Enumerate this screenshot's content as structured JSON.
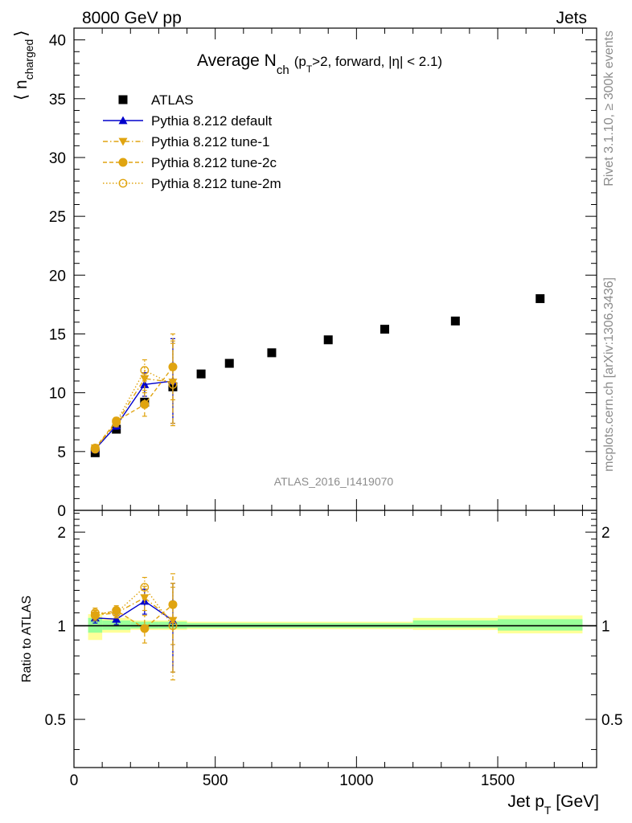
{
  "header": {
    "left": "8000 GeV pp",
    "right": "Jets",
    "side_top": "Rivet 3.1.10, ≥ 300k events",
    "side_bottom": "mcplots.cern.ch [arXiv:1306.3436]",
    "watermark": "ATLAS_2016_I1419070"
  },
  "title": {
    "main": "Average N",
    "main_sub": "ch",
    "qual_open": "(p",
    "qual_sub": "T",
    "qual_close": ">2, forward, |η| < 2.1)"
  },
  "axes": {
    "ylabel_open": "⟨ n",
    "ylabel_sub": "charged",
    "ylabel_close": "⟩",
    "ratio_ylabel": "Ratio to ATLAS",
    "xlabel_main": "Jet p",
    "xlabel_sub": "T",
    "xlabel_unit": " [GeV]"
  },
  "chart_data": [
    {
      "type": "scatter",
      "panel": "main",
      "xlim": [
        0,
        1850
      ],
      "ylim": [
        0,
        41
      ],
      "x_ticks": [
        0,
        500,
        1000,
        1500
      ],
      "x_tick_labels": [
        "0",
        "500",
        "1000",
        "1500"
      ],
      "y_ticks": [
        0,
        5,
        10,
        15,
        20,
        25,
        30,
        35,
        40
      ],
      "y_tick_labels": [
        "0",
        "5",
        "10",
        "15",
        "20",
        "25",
        "30",
        "35",
        "40"
      ],
      "legend_position": "top-left",
      "series": [
        {
          "name": "ATLAS",
          "color": "#000000",
          "marker": "square",
          "line": "none",
          "x": [
            75,
            150,
            250,
            350,
            450,
            550,
            700,
            900,
            1100,
            1350,
            1650
          ],
          "y": [
            4.9,
            6.9,
            9.2,
            10.5,
            11.6,
            12.5,
            13.4,
            14.5,
            15.4,
            16.1,
            18.0
          ]
        },
        {
          "name": "Pythia 8.212 default",
          "color": "#0000cc",
          "marker": "triangle-up",
          "line": "solid",
          "x": [
            75,
            150,
            250,
            350
          ],
          "y": [
            5.2,
            7.2,
            10.7,
            11.0
          ],
          "yerr": [
            0.2,
            0.3,
            1.0,
            3.6
          ]
        },
        {
          "name": "Pythia 8.212 tune-1",
          "color": "#e0a410",
          "marker": "triangle-down",
          "line": "dashdot",
          "x": [
            75,
            150,
            250,
            350
          ],
          "y": [
            5.3,
            7.4,
            11.2,
            10.9
          ],
          "yerr": [
            0.2,
            0.3,
            1.0,
            3.5
          ]
        },
        {
          "name": "Pythia 8.212 tune-2c",
          "color": "#e0a410",
          "marker": "circle",
          "line": "dashed",
          "x": [
            75,
            150,
            250,
            350
          ],
          "y": [
            5.3,
            7.6,
            9.0,
            12.2
          ],
          "yerr": [
            0.2,
            0.3,
            1.0,
            2.8
          ]
        },
        {
          "name": "Pythia 8.212 tune-2m",
          "color": "#e0a410",
          "marker": "open-circle",
          "line": "dotted",
          "x": [
            75,
            150,
            250,
            350
          ],
          "y": [
            5.2,
            7.5,
            11.9,
            10.7
          ],
          "yerr": [
            0.2,
            0.3,
            0.9,
            3.5
          ]
        }
      ]
    },
    {
      "type": "scatter",
      "panel": "ratio",
      "xlim": [
        0,
        1850
      ],
      "ylim": [
        0.35,
        2.35
      ],
      "y_scale": "log",
      "y_ticks": [
        0.5,
        1,
        2
      ],
      "y_tick_labels": [
        "0.5",
        "1",
        "2"
      ],
      "reference_line": 1,
      "bands": [
        {
          "x": [
            50,
            100
          ],
          "inner": [
            0.95,
            1.06
          ],
          "outer": [
            0.9,
            1.09
          ]
        },
        {
          "x": [
            100,
            200
          ],
          "inner": [
            0.97,
            1.04
          ],
          "outer": [
            0.95,
            1.06
          ]
        },
        {
          "x": [
            200,
            300
          ],
          "inner": [
            0.98,
            1.03
          ],
          "outer": [
            0.97,
            1.04
          ]
        },
        {
          "x": [
            300,
            400
          ],
          "inner": [
            0.98,
            1.03
          ],
          "outer": [
            0.97,
            1.04
          ]
        },
        {
          "x": [
            400,
            1200
          ],
          "inner": [
            0.985,
            1.02
          ],
          "outer": [
            0.975,
            1.03
          ]
        },
        {
          "x": [
            1200,
            1500
          ],
          "inner": [
            0.985,
            1.04
          ],
          "outer": [
            0.97,
            1.06
          ]
        },
        {
          "x": [
            1500,
            1800
          ],
          "inner": [
            0.965,
            1.05
          ],
          "outer": [
            0.945,
            1.08
          ]
        }
      ],
      "series": [
        {
          "name": "Pythia 8.212 default",
          "color": "#0000cc",
          "marker": "triangle-up",
          "line": "solid",
          "x": [
            75,
            150,
            250,
            350
          ],
          "y": [
            1.06,
            1.05,
            1.2,
            1.04
          ],
          "yerr": [
            0.04,
            0.04,
            0.11,
            0.33
          ]
        },
        {
          "name": "Pythia 8.212 tune-1",
          "color": "#e0a410",
          "marker": "triangle-down",
          "line": "dashdot",
          "x": [
            75,
            150,
            250,
            350
          ],
          "y": [
            1.08,
            1.1,
            1.23,
            1.04
          ],
          "yerr": [
            0.04,
            0.04,
            0.11,
            0.33
          ]
        },
        {
          "name": "Pythia 8.212 tune-2c",
          "color": "#e0a410",
          "marker": "circle",
          "line": "dashed",
          "x": [
            75,
            150,
            250,
            350
          ],
          "y": [
            1.08,
            1.12,
            0.98,
            1.17
          ],
          "yerr": [
            0.04,
            0.04,
            0.1,
            0.3
          ]
        },
        {
          "name": "Pythia 8.212 tune-2m",
          "color": "#e0a410",
          "marker": "open-circle",
          "line": "dotted",
          "x": [
            75,
            150,
            250,
            350
          ],
          "y": [
            1.1,
            1.1,
            1.33,
            1.0
          ],
          "yerr": [
            0.04,
            0.04,
            0.1,
            0.33
          ]
        }
      ]
    }
  ]
}
